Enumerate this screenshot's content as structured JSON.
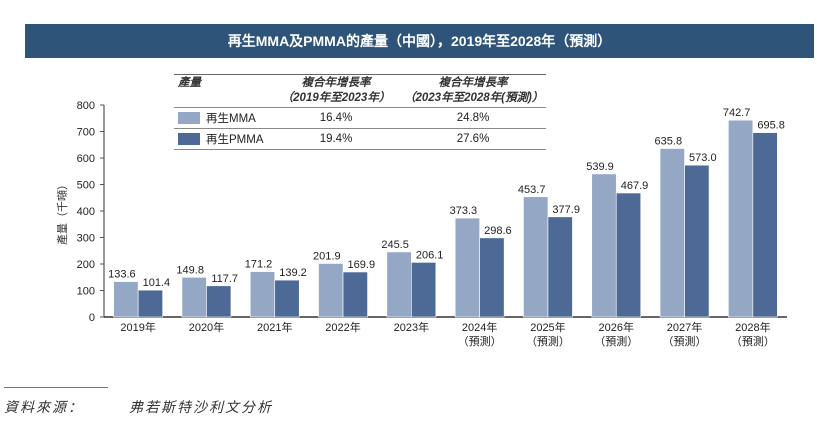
{
  "header": {
    "title": "再生MMA及PMMA的產量（中國），2019年至2028年（預測）"
  },
  "cagr_table": {
    "col_label": "產量",
    "col1": {
      "line1": "複合年增長率",
      "line2": "（2019年至2023年）"
    },
    "col2": {
      "line1": "複合年增長率",
      "line2": "（2023年至2028年(預測)）"
    },
    "rows": [
      {
        "name": "再生MMA",
        "color": "#94a8c6",
        "cagr1": "16.4%",
        "cagr2": "24.8%"
      },
      {
        "name": "再生PMMA",
        "color": "#4d6a96",
        "cagr1": "19.4%",
        "cagr2": "27.6%"
      }
    ]
  },
  "chart_data": {
    "type": "bar",
    "title": "再生MMA及PMMA的產量（中國），2019年至2028年（預測）",
    "xlabel": "",
    "ylabel": "產量（千噸）",
    "ylim": [
      0,
      800
    ],
    "yticks": [
      0,
      100,
      200,
      300,
      400,
      500,
      600,
      700,
      800
    ],
    "grid": false,
    "categories": [
      "2019年",
      "2020年",
      "2021年",
      "2022年",
      "2023年",
      "2024年",
      "2025年",
      "2026年",
      "2027年",
      "2028年"
    ],
    "category_sublabels": [
      "",
      "",
      "",
      "",
      "",
      "（預測）",
      "（預測）",
      "（預測）",
      "（預測）",
      "（預測）"
    ],
    "series": [
      {
        "name": "再生MMA",
        "color": "#94a8c6",
        "values": [
          133.6,
          149.8,
          171.2,
          201.9,
          245.5,
          373.3,
          453.7,
          539.9,
          635.8,
          742.7
        ]
      },
      {
        "name": "再生PMMA",
        "color": "#4d6a96",
        "values": [
          101.4,
          117.7,
          139.2,
          169.9,
          206.1,
          298.6,
          377.9,
          467.9,
          573.0,
          695.8
        ]
      }
    ],
    "legend": "top-left (inside table)"
  },
  "source": {
    "label": "資料來源：",
    "value": "弗若斯特沙利文分析"
  }
}
